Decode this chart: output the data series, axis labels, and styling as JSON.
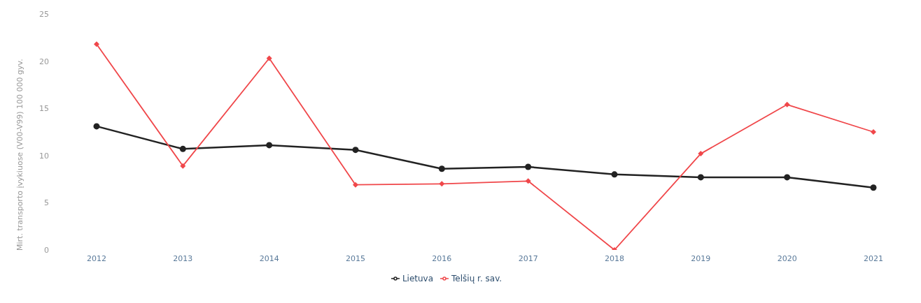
{
  "chart_data": {
    "type": "line",
    "ylabel": "Mirt. transporto įvykiuose (V00-V99) 100 000 gyv.",
    "categories": [
      "2012",
      "2013",
      "2014",
      "2015",
      "2016",
      "2017",
      "2018",
      "2019",
      "2020",
      "2021"
    ],
    "series": [
      {
        "name": "Lietuva",
        "color": "#222222",
        "marker": "circle",
        "values": [
          13.1,
          10.7,
          11.1,
          10.6,
          8.6,
          8.8,
          8.0,
          7.7,
          7.7,
          6.6
        ]
      },
      {
        "name": "Telšių r. sav.",
        "color": "#f0474a",
        "marker": "diamond",
        "values": [
          21.8,
          8.9,
          20.3,
          6.9,
          7.0,
          7.3,
          0,
          10.2,
          15.4,
          12.5
        ]
      }
    ],
    "ylim": [
      0,
      25
    ],
    "yticks": [
      0,
      5,
      10,
      15,
      20,
      25
    ],
    "grid": false,
    "legend": "bottom"
  }
}
